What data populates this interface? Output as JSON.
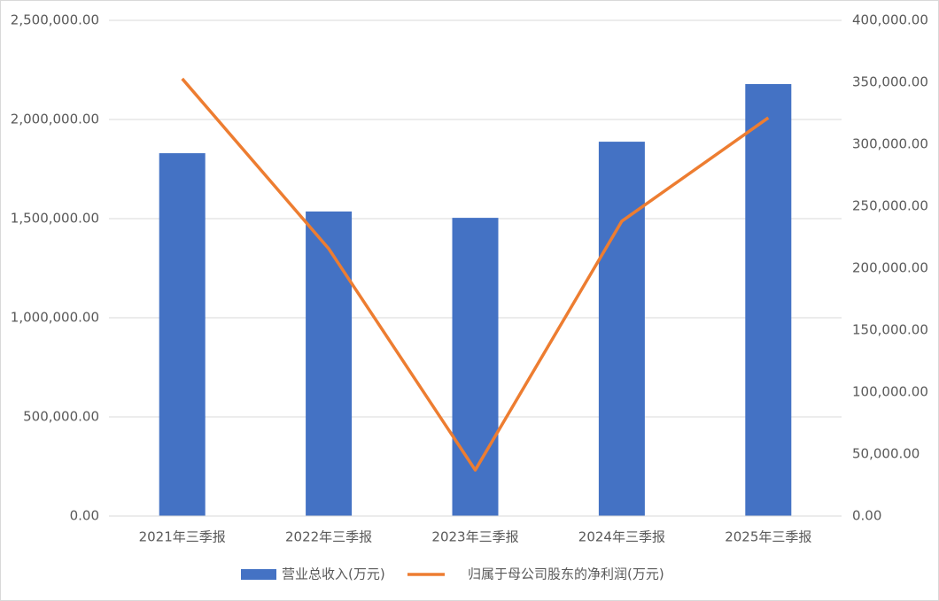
{
  "chart_data": {
    "type": "bar-line",
    "categories": [
      "2021年三季报",
      "2022年三季报",
      "2023年三季报",
      "2024年三季报",
      "2025年三季报"
    ],
    "series": [
      {
        "name": "营业总收入(万元)",
        "type": "bar",
        "color": "#4472c4",
        "values": [
          1830000,
          1536000,
          1504000,
          1888000,
          2178600
        ]
      },
      {
        "name": "归属于母公司股东的净利润(万元)",
        "type": "line",
        "axis": "y2",
        "color": "#ed7d31",
        "values": [
          352900,
          215700,
          37100,
          237900,
          321400
        ]
      }
    ],
    "ylim": [
      0,
      2500000
    ],
    "yticks": [
      {
        "value": 0,
        "label": "0.00"
      },
      {
        "value": 500000,
        "label": "500,000.00"
      },
      {
        "value": 1000000,
        "label": "1,000,000.00"
      },
      {
        "value": 1500000,
        "label": "1,500,000.00"
      },
      {
        "value": 2000000,
        "label": "2,000,000.00"
      },
      {
        "value": 2500000,
        "label": "2,500,000.00"
      }
    ],
    "y2lim": [
      0,
      400000
    ],
    "y2ticks": [
      {
        "value": 0,
        "label": "0.00"
      },
      {
        "value": 50000,
        "label": "50,000.00"
      },
      {
        "value": 100000,
        "label": "100,000.00"
      },
      {
        "value": 150000,
        "label": "150,000.00"
      },
      {
        "value": 200000,
        "label": "200,000.00"
      },
      {
        "value": 250000,
        "label": "250,000.00"
      },
      {
        "value": 300000,
        "label": "300,000.00"
      },
      {
        "value": 350000,
        "label": "350,000.00"
      },
      {
        "value": 400000,
        "label": "400,000.00"
      }
    ],
    "grid": true,
    "legend": "bottom"
  }
}
